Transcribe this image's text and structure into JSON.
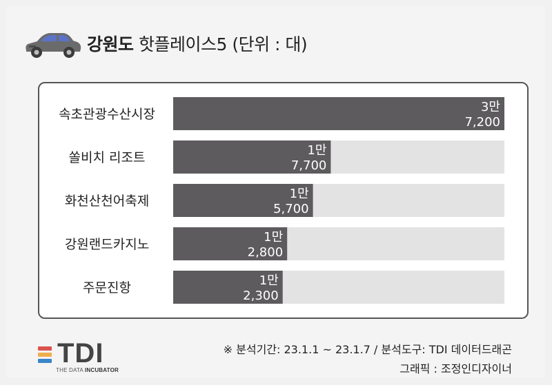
{
  "header": {
    "title_bold": "강원도",
    "title_rest": " 핫플레이스5 (단위 : 대)",
    "car_icon": "car-icon"
  },
  "chart_data": {
    "type": "bar",
    "orientation": "horizontal",
    "categories": [
      "속초관광수산시장",
      "쏠비치 리조트",
      "화천산천어축제",
      "강원랜드카지노",
      "주문진항"
    ],
    "values": [
      37200,
      17700,
      15700,
      12800,
      12300
    ],
    "data_labels": [
      [
        "3만",
        "7,200"
      ],
      [
        "1만",
        "7,700"
      ],
      [
        "1만",
        "5,700"
      ],
      [
        "1만",
        "2,800"
      ],
      [
        "1만",
        "2,300"
      ]
    ],
    "xlim": [
      0,
      37200
    ],
    "grid": false,
    "bar_color": "#5d5b5d",
    "track_color": "#e3e3e3"
  },
  "footer": {
    "source": "※ 분석기간: 23.1.1 ~ 23.1.7 / 분석도구: TDI 데이터드래곤",
    "credit": "그래픽 : 조정인디자이너"
  },
  "logo": {
    "word": "TDI",
    "sub_plain": "THE DATA ",
    "sub_bold": "INCUBATOR",
    "stripe_colors": [
      "#d9534f",
      "#f0ad4e",
      "#3a85c8"
    ]
  }
}
